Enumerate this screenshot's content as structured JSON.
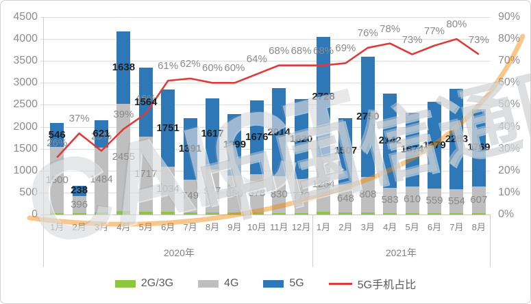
{
  "chart_data": {
    "type": "bar",
    "subtype": "stacked-bars-with-percent-line",
    "categories": [
      "1月",
      "2月",
      "3月",
      "4月",
      "5月",
      "6月",
      "7月",
      "8月",
      "9月",
      "10月",
      "11月",
      "12月",
      "1月",
      "2月",
      "3月",
      "4月",
      "5月",
      "6月",
      "7月",
      "8月"
    ],
    "year_groups": [
      {
        "label": "2020年",
        "months": 12
      },
      {
        "label": "2021年",
        "months": 8
      }
    ],
    "series": [
      {
        "name": "2G/3G",
        "color": "#8dc63f",
        "show_labels": false,
        "values": [
          35,
          25,
          45,
          75,
          61,
          60,
          51,
          46,
          41,
          40,
          35,
          36,
          59,
          39,
          45,
          32,
          30,
          27,
          25,
          28
        ]
      },
      {
        "name": "4G",
        "color": "#bfbfbf",
        "show_labels": true,
        "values": [
          1500,
          396,
          1484,
          2455,
          1717,
          1034,
          749,
          977,
          850,
          878,
          830,
          770,
          1254,
          648,
          808,
          583,
          610,
          559,
          554,
          607
        ]
      },
      {
        "name": "5G",
        "color": "#2e78b8",
        "show_labels": true,
        "values": [
          546,
          238,
          621,
          1638,
          1564,
          1751,
          1391,
          1617,
          1399,
          1676,
          2014,
          1820,
          2728,
          1507,
          2750,
          2142,
          1674,
          1979,
          2283,
          1769
        ]
      }
    ],
    "line_series": {
      "name": "5G手机占比",
      "color": "#e03a38",
      "suffix": "%",
      "values": [
        26,
        37,
        29,
        39,
        46,
        61,
        62,
        60,
        60,
        64,
        68,
        68,
        68,
        69,
        76,
        78,
        73,
        77,
        80,
        73
      ]
    },
    "left_axis": {
      "min": 0,
      "max": 4500,
      "step": 500
    },
    "right_axis": {
      "min": 0,
      "max": 90,
      "step": 10,
      "suffix": "%"
    },
    "legend": [
      {
        "label": "2G/3G",
        "color": "#8dc63f",
        "shape": "rect"
      },
      {
        "label": "4G",
        "color": "#bfbfbf",
        "shape": "rect"
      },
      {
        "label": "5G",
        "color": "#2e78b8",
        "shape": "rect"
      },
      {
        "label": "5G手机占比",
        "color": "#e03a38",
        "shape": "line"
      }
    ],
    "grid": true,
    "legend_position": "bottom"
  },
  "watermark": {
    "text_en": "CAICT",
    "text_cn": "中国信通院",
    "accent_color": "#f08300"
  }
}
